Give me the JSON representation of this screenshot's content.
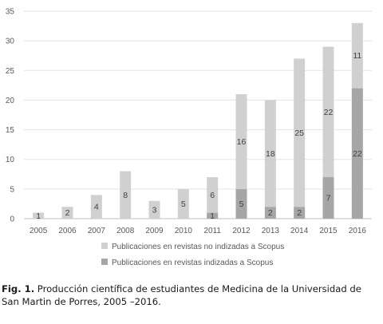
{
  "chart_data": {
    "type": "bar",
    "stacked": true,
    "categories": [
      "2005",
      "2006",
      "2007",
      "2008",
      "2009",
      "2010",
      "2011",
      "2012",
      "2013",
      "2014",
      "2015",
      "2016"
    ],
    "series": [
      {
        "name": "Publicaciones en revistas indizadas a Scopus",
        "values": [
          0,
          0,
          0,
          0,
          0,
          0,
          1,
          5,
          2,
          2,
          7,
          22
        ],
        "color": "#a6a6a6"
      },
      {
        "name": "Publicaciones en revistas no indizadas a Scopus",
        "values": [
          1,
          2,
          4,
          8,
          3,
          5,
          6,
          16,
          18,
          25,
          22,
          11
        ],
        "color": "#d0d0d0"
      }
    ],
    "ylim": [
      0,
      35
    ],
    "yticks": [
      0,
      5,
      10,
      15,
      20,
      25,
      30,
      35
    ],
    "grid": true,
    "legend": "bottom",
    "xlabel": "",
    "ylabel": "",
    "title": ""
  },
  "caption": {
    "label": "Fig. 1.",
    "text": " Producción científica de estudiantes de Medicina de la Universidad de San Martin de Porres, 2005 –2016."
  }
}
